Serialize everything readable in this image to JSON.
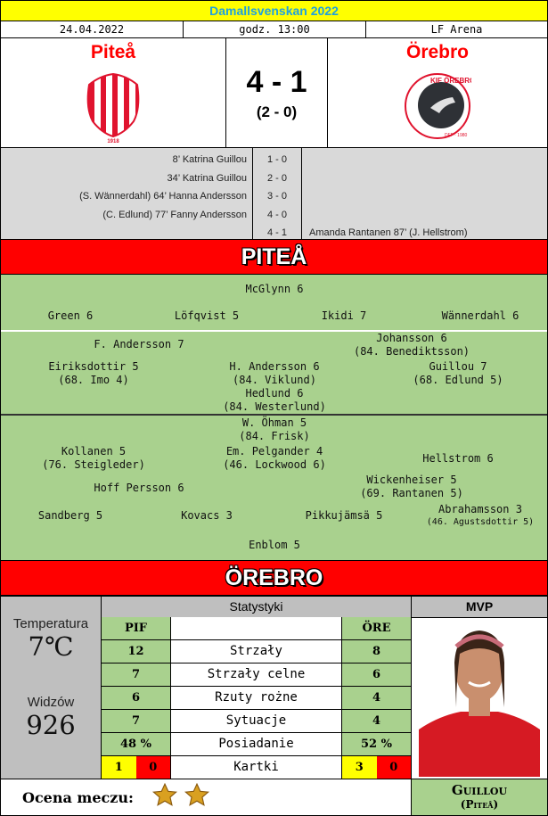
{
  "header": {
    "competition": "Damallsvenskan 2022",
    "date": "24.04.2022",
    "time": "godz. 13:00",
    "venue": "LF Arena"
  },
  "match": {
    "home": "Piteå",
    "away": "Örebro",
    "score": "4 - 1",
    "halftime": "(2 - 0)",
    "home_logo": "PIF",
    "away_logo": "KIF ÖREBRO",
    "home_logo_year": "1918",
    "away_logo_year": "DFF · 1980"
  },
  "goals": [
    {
      "home": "8’ Katrina Guillou",
      "score": "1 - 0",
      "away": ""
    },
    {
      "home": "34’ Katrina Guillou",
      "score": "2 - 0",
      "away": ""
    },
    {
      "home": "(S. Wännerdahl)  64’ Hanna Andersson",
      "score": "3 - 0",
      "away": ""
    },
    {
      "home": "(C. Edlund)  77’ Fanny Andersson",
      "score": "4 - 0",
      "away": ""
    },
    {
      "home": "",
      "score": "4 - 1",
      "away": "Amanda Rantanen 87’  (J. Hellstrom)"
    }
  ],
  "home_banner": "PITEÅ",
  "away_banner": "ÖREBRO",
  "lineup": [
    {
      "name": "McGlynn 6",
      "sub": ""
    },
    {
      "name": "Green 6",
      "sub": ""
    },
    {
      "name": "Löfqvist 5",
      "sub": ""
    },
    {
      "name": "Ikidi 7",
      "sub": ""
    },
    {
      "name": "Wännerdahl 6",
      "sub": ""
    },
    {
      "name": "F. Andersson 7",
      "sub": ""
    },
    {
      "name": "Johansson 6",
      "sub": "(84. Benediktsson)"
    },
    {
      "name": "Eiriksdottir 5",
      "sub": "(68. Imo 4)"
    },
    {
      "name": "H. Andersson 6",
      "sub": "(84. Viklund)"
    },
    {
      "name": "Guillou 7",
      "sub": "(68. Edlund 5)"
    },
    {
      "name": "Hedlund 6",
      "sub": "(84. Westerlund)"
    },
    {
      "name": "W. Öhman 5",
      "sub": "(84. Frisk)"
    },
    {
      "name": "Kollanen 5",
      "sub": "(76. Steigleder)"
    },
    {
      "name": "Em. Pelgander 4",
      "sub": "(46. Lockwood 6)"
    },
    {
      "name": "Hellstrom 6",
      "sub": ""
    },
    {
      "name": "Hoff Persson 6",
      "sub": ""
    },
    {
      "name": "Wickenheiser 5",
      "sub": "(69. Rantanen 5)"
    },
    {
      "name": "Sandberg 5",
      "sub": ""
    },
    {
      "name": "Kovacs 3",
      "sub": ""
    },
    {
      "name": "Pikkujämsä 5",
      "sub": ""
    },
    {
      "name": "Abrahamsson 3",
      "sub": "(46. Agustsdottir 5)"
    },
    {
      "name": "Enblom 5",
      "sub": ""
    }
  ],
  "conditions": {
    "temp_label": "Temperatura",
    "temp": "7℃",
    "att_label": "Widzów",
    "att": "926"
  },
  "stats": {
    "title": "Statystyki",
    "home_abbr": "PIF",
    "away_abbr": "ÖRE",
    "rows": [
      {
        "label": "Strzały",
        "home": "12",
        "away": "8"
      },
      {
        "label": "Strzały celne",
        "home": "7",
        "away": "6"
      },
      {
        "label": "Rzuty rożne",
        "home": "6",
        "away": "4"
      },
      {
        "label": "Sytuacje",
        "home": "7",
        "away": "4"
      },
      {
        "label": "Posiadanie",
        "home": "48 %",
        "away": "52 %"
      }
    ],
    "cards": {
      "label": "Kartki",
      "home_yellow": "1",
      "home_red": "0",
      "away_yellow": "3",
      "away_red": "0"
    }
  },
  "rating": {
    "label": "Ocena meczu:",
    "stars": 2
  },
  "mvp": {
    "title": "MVP",
    "name": "Guillou",
    "team": "(Piteå)"
  },
  "colors": {
    "yellow": "#ffff00",
    "title_text": "#1ea0e0",
    "red": "#ff0000",
    "green": "#a9d18e",
    "grey": "#d9d9d9"
  }
}
